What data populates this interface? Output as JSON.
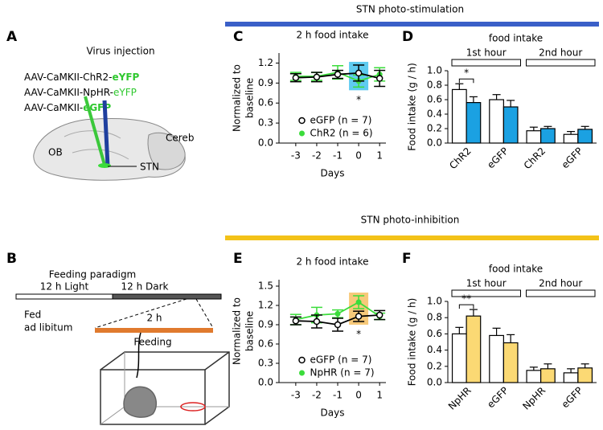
{
  "sections": [
    {
      "title": "STN photo-stimulation",
      "color": "#3a5fc8"
    },
    {
      "title": "STN photo-inhibition",
      "color": "#f3c218"
    }
  ],
  "panels": {
    "A": {
      "letter": "A",
      "title": "Virus injection",
      "constructs": [
        [
          "AAV-CaMKII-ChR2-",
          "eYFP"
        ],
        [
          "AAV-CaMKII-NpHR-",
          "eYFP"
        ],
        [
          "AAV-CaMKII-",
          "eGFP"
        ]
      ],
      "labels": [
        "OB",
        "Cereb",
        "STN"
      ]
    },
    "B": {
      "letter": "B",
      "title": "Feeding paradigm",
      "light": "12 h Light",
      "dark": "12 h Dark",
      "fed": [
        "Fed",
        "ad libitum"
      ],
      "window": "2 h",
      "feeding": "Feeding"
    }
  },
  "chart_data": [
    {
      "type": "line",
      "letter": "C",
      "title": "2 h food intake",
      "ylabel": [
        "Normalized to",
        "baseline"
      ],
      "xlabel": "Days",
      "x": [
        -3,
        -2,
        -1,
        0,
        1
      ],
      "xlim": [
        -3.8,
        1.3
      ],
      "xticks": [
        -3,
        -2,
        -1,
        0,
        1
      ],
      "ylim": [
        0,
        1.35
      ],
      "yticks": [
        {
          "value": 0,
          "label": "0.0"
        },
        0.3,
        0.6,
        0.9,
        1.2
      ],
      "highlight": {
        "x": 0,
        "color": "#5fcbf0"
      },
      "legend": "lower center",
      "annotations": [
        {
          "text": "*",
          "x": 0
        }
      ],
      "series": [
        {
          "name": "eGFP (n = 7)",
          "color": "#000000",
          "marker": "open",
          "values": [
            0.98,
            0.99,
            1.03,
            1.05,
            0.97
          ],
          "errors": [
            0.06,
            0.07,
            0.06,
            0.12,
            0.12
          ]
        },
        {
          "name": "ChR2 (n = 6)",
          "color": "#3bdc3b",
          "marker": "filled",
          "values": [
            1.0,
            1.0,
            1.06,
            0.93,
            1.03
          ],
          "errors": [
            0.06,
            0.06,
            0.1,
            0.09,
            0.1
          ]
        }
      ]
    },
    {
      "type": "bar",
      "letter": "D",
      "title": "food intake",
      "ylabel": "Food intake (g / h)",
      "categories": [
        "ChR2",
        "eGFP",
        "ChR2",
        "eGFP"
      ],
      "groups": [
        "1st hour",
        "2nd hour"
      ],
      "ylim": [
        0,
        1.0
      ],
      "yticks": [
        {
          "value": 0,
          "label": "0.0"
        },
        0.2,
        0.4,
        0.6,
        0.8,
        {
          "value": 1,
          "label": "1.0"
        }
      ],
      "significance": {
        "label": "*",
        "category": 0
      },
      "series": [
        {
          "color": "#ffffff",
          "values": [
            0.74,
            0.6,
            0.17,
            0.12
          ],
          "errors": [
            0.08,
            0.07,
            0.05,
            0.04
          ]
        },
        {
          "color": "#1ba1e2",
          "values": [
            0.56,
            0.5,
            0.2,
            0.19
          ],
          "errors": [
            0.08,
            0.09,
            0.03,
            0.04
          ]
        }
      ]
    },
    {
      "type": "line",
      "letter": "E",
      "title": "2 h food intake",
      "ylabel": [
        "Normalized to",
        "baseline"
      ],
      "xlabel": "Days",
      "x": [
        -3,
        -2,
        -1,
        0,
        1
      ],
      "xlim": [
        -3.8,
        1.3
      ],
      "xticks": [
        -3,
        -2,
        -1,
        0,
        1
      ],
      "ylim": [
        0,
        1.6
      ],
      "yticks": [
        {
          "value": 0,
          "label": "0.0"
        },
        0.3,
        0.6,
        0.9,
        1.2,
        1.5
      ],
      "highlight": {
        "x": 0,
        "color": "#f7c97a"
      },
      "legend": "lower center",
      "annotations": [
        {
          "text": "*",
          "x": 0
        }
      ],
      "series": [
        {
          "name": "eGFP (n = 7)",
          "color": "#000000",
          "marker": "open",
          "values": [
            0.96,
            0.95,
            0.9,
            1.03,
            1.05
          ],
          "errors": [
            0.06,
            0.1,
            0.1,
            0.08,
            0.07
          ]
        },
        {
          "name": "NpHR (n = 7)",
          "color": "#3bdc3b",
          "marker": "filled",
          "values": [
            0.98,
            1.05,
            1.07,
            1.25,
            1.03
          ],
          "errors": [
            0.08,
            0.12,
            0.06,
            0.1,
            0.05
          ]
        }
      ]
    },
    {
      "type": "bar",
      "letter": "F",
      "title": "food intake",
      "ylabel": "Food intake (g / h)",
      "categories": [
        "NpHR",
        "eGFP",
        "NpHR",
        "eGFP"
      ],
      "groups": [
        "1st hour",
        "2nd hour"
      ],
      "ylim": [
        0,
        1.0
      ],
      "yticks": [
        {
          "value": 0,
          "label": "0.0"
        },
        0.2,
        0.4,
        0.6,
        0.8,
        {
          "value": 1,
          "label": "1.0"
        }
      ],
      "significance": {
        "label": "**",
        "category": 0
      },
      "series": [
        {
          "color": "#ffffff",
          "values": [
            0.6,
            0.58,
            0.15,
            0.12
          ],
          "errors": [
            0.08,
            0.09,
            0.04,
            0.05
          ]
        },
        {
          "color": "#fbd974",
          "values": [
            0.82,
            0.49,
            0.17,
            0.18
          ],
          "errors": [
            0.08,
            0.1,
            0.06,
            0.05
          ]
        }
      ]
    }
  ]
}
